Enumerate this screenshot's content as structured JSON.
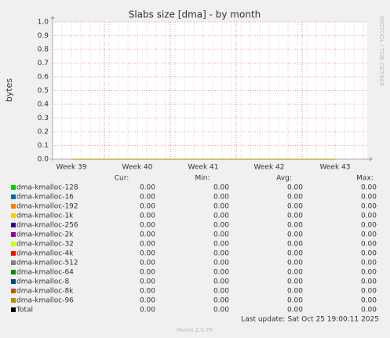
{
  "chart_data": {
    "type": "line",
    "title": "Slabs size [dma] - by month",
    "y_label": "bytes",
    "side_text": "RRDTOOL / TOBI OETIKER",
    "categories": [
      "Week 39",
      "Week 40",
      "Week 41",
      "Week 42",
      "Week 43"
    ],
    "ylim": [
      0,
      1
    ],
    "grid": true,
    "yticks": [
      {
        "value": 0,
        "label": "0.0"
      },
      {
        "value": 0.1,
        "label": "0.1"
      },
      {
        "value": 0.2,
        "label": "0.2"
      },
      {
        "value": 0.3,
        "label": "0.3"
      },
      {
        "value": 0.4,
        "label": "0.4"
      },
      {
        "value": 0.5,
        "label": "0.5"
      },
      {
        "value": 0.6,
        "label": "0.6"
      },
      {
        "value": 0.7,
        "label": "0.7"
      },
      {
        "value": 0.8,
        "label": "0.8"
      },
      {
        "value": 0.9,
        "label": "0.9"
      },
      {
        "value": 1,
        "label": "1.0"
      }
    ],
    "stat_columns": [
      "Cur:",
      "Min:",
      "Avg:",
      "Max:"
    ],
    "series": [
      {
        "name": "dma-kmalloc-128",
        "color": "#00cc00",
        "values": [
          0,
          0,
          0,
          0,
          0
        ],
        "stats": [
          0,
          0,
          0,
          0
        ],
        "stat_labels": [
          "0.00",
          "0.00",
          "0.00",
          "0.00"
        ]
      },
      {
        "name": "dma-kmalloc-16",
        "color": "#0066b3",
        "values": [
          0,
          0,
          0,
          0,
          0
        ],
        "stats": [
          0,
          0,
          0,
          0
        ],
        "stat_labels": [
          "0.00",
          "0.00",
          "0.00",
          "0.00"
        ]
      },
      {
        "name": "dma-kmalloc-192",
        "color": "#ff8000",
        "values": [
          0,
          0,
          0,
          0,
          0
        ],
        "stats": [
          0,
          0,
          0,
          0
        ],
        "stat_labels": [
          "0.00",
          "0.00",
          "0.00",
          "0.00"
        ]
      },
      {
        "name": "dma-kmalloc-1k",
        "color": "#ffcc00",
        "values": [
          0,
          0,
          0,
          0,
          0
        ],
        "stats": [
          0,
          0,
          0,
          0
        ],
        "stat_labels": [
          "0.00",
          "0.00",
          "0.00",
          "0.00"
        ]
      },
      {
        "name": "dma-kmalloc-256",
        "color": "#330099",
        "values": [
          0,
          0,
          0,
          0,
          0
        ],
        "stats": [
          0,
          0,
          0,
          0
        ],
        "stat_labels": [
          "0.00",
          "0.00",
          "0.00",
          "0.00"
        ]
      },
      {
        "name": "dma-kmalloc-2k",
        "color": "#990099",
        "values": [
          0,
          0,
          0,
          0,
          0
        ],
        "stats": [
          0,
          0,
          0,
          0
        ],
        "stat_labels": [
          "0.00",
          "0.00",
          "0.00",
          "0.00"
        ]
      },
      {
        "name": "dma-kmalloc-32",
        "color": "#ccff00",
        "values": [
          0,
          0,
          0,
          0,
          0
        ],
        "stats": [
          0,
          0,
          0,
          0
        ],
        "stat_labels": [
          "0.00",
          "0.00",
          "0.00",
          "0.00"
        ]
      },
      {
        "name": "dma-kmalloc-4k",
        "color": "#ff0000",
        "values": [
          0,
          0,
          0,
          0,
          0
        ],
        "stats": [
          0,
          0,
          0,
          0
        ],
        "stat_labels": [
          "0.00",
          "0.00",
          "0.00",
          "0.00"
        ]
      },
      {
        "name": "dma-kmalloc-512",
        "color": "#808080",
        "values": [
          0,
          0,
          0,
          0,
          0
        ],
        "stats": [
          0,
          0,
          0,
          0
        ],
        "stat_labels": [
          "0.00",
          "0.00",
          "0.00",
          "0.00"
        ]
      },
      {
        "name": "dma-kmalloc-64",
        "color": "#008f00",
        "values": [
          0,
          0,
          0,
          0,
          0
        ],
        "stats": [
          0,
          0,
          0,
          0
        ],
        "stat_labels": [
          "0.00",
          "0.00",
          "0.00",
          "0.00"
        ]
      },
      {
        "name": "dma-kmalloc-8",
        "color": "#00487d",
        "values": [
          0,
          0,
          0,
          0,
          0
        ],
        "stats": [
          0,
          0,
          0,
          0
        ],
        "stat_labels": [
          "0.00",
          "0.00",
          "0.00",
          "0.00"
        ]
      },
      {
        "name": "dma-kmalloc-8k",
        "color": "#b35a00",
        "values": [
          0,
          0,
          0,
          0,
          0
        ],
        "stats": [
          0,
          0,
          0,
          0
        ],
        "stat_labels": [
          "0.00",
          "0.00",
          "0.00",
          "0.00"
        ]
      },
      {
        "name": "dma-kmalloc-96",
        "color": "#b38f00",
        "values": [
          0,
          0,
          0,
          0,
          0
        ],
        "stats": [
          0,
          0,
          0,
          0
        ],
        "stat_labels": [
          "0.00",
          "0.00",
          "0.00",
          "0.00"
        ]
      }
    ],
    "total": {
      "name": "Total",
      "color": "#000000",
      "stats": [
        0,
        0,
        0,
        0
      ],
      "stat_labels": [
        "0.00",
        "0.00",
        "0.00",
        "0.00"
      ]
    },
    "last_update": "Last update: Sat Oct 25 19:00:11 2025",
    "footer": "Munin 2.0.76"
  }
}
